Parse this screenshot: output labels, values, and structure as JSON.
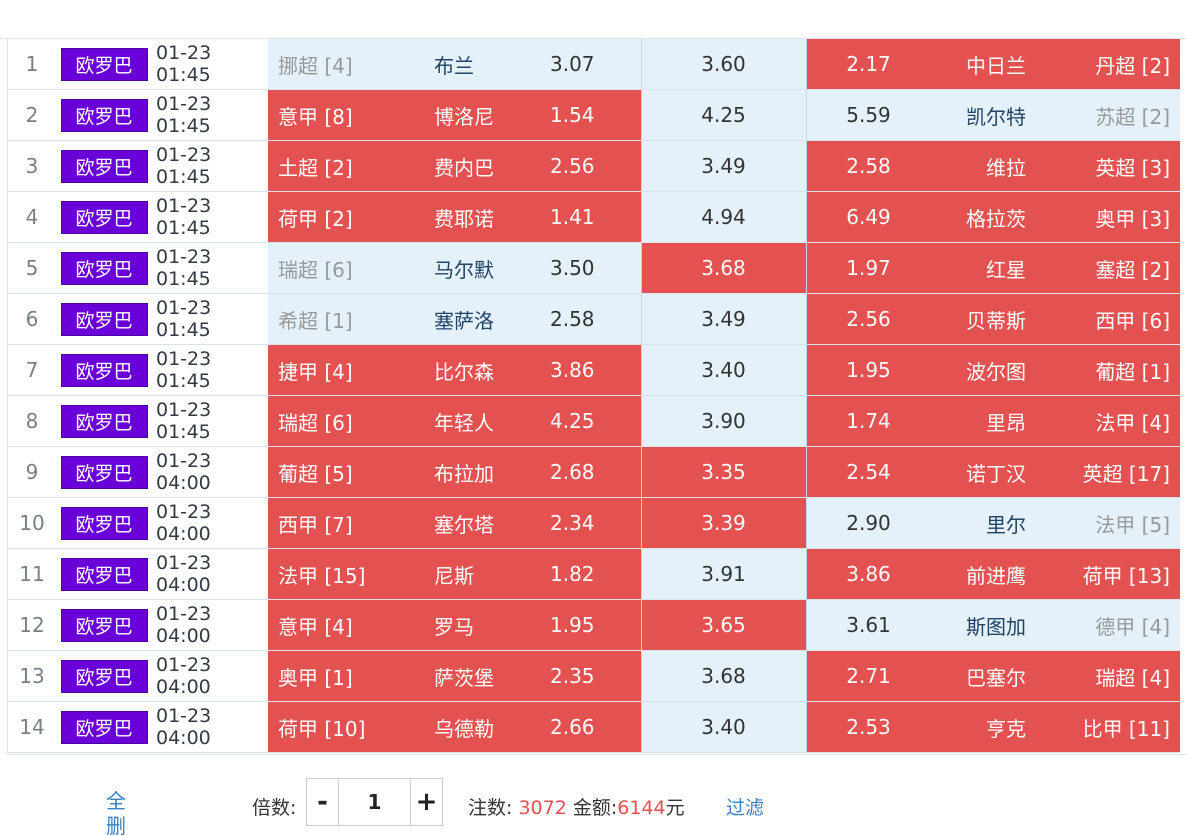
{
  "colors": {
    "accent_red": "#e35151",
    "light_blue": "#e4f0fa",
    "badge_purple": "#6a00d8",
    "link_blue": "#3b7ec3"
  },
  "matches": [
    {
      "num": "1",
      "league_badge": "欧罗巴",
      "time": "01-23 01:45",
      "home_league": "挪超 [4]",
      "home_team": "布兰",
      "home_odds": "3.07",
      "draw_odds": "3.60",
      "away_odds": "2.17",
      "away_team": "中日兰",
      "away_league": "丹超 [2]",
      "home_sel": false,
      "draw_sel": false,
      "away_sel": true
    },
    {
      "num": "2",
      "league_badge": "欧罗巴",
      "time": "01-23 01:45",
      "home_league": "意甲 [8]",
      "home_team": "博洛尼",
      "home_odds": "1.54",
      "draw_odds": "4.25",
      "away_odds": "5.59",
      "away_team": "凯尔特",
      "away_league": "苏超 [2]",
      "home_sel": true,
      "draw_sel": false,
      "away_sel": false
    },
    {
      "num": "3",
      "league_badge": "欧罗巴",
      "time": "01-23 01:45",
      "home_league": "土超 [2]",
      "home_team": "费内巴",
      "home_odds": "2.56",
      "draw_odds": "3.49",
      "away_odds": "2.58",
      "away_team": "维拉",
      "away_league": "英超 [3]",
      "home_sel": true,
      "draw_sel": false,
      "away_sel": true
    },
    {
      "num": "4",
      "league_badge": "欧罗巴",
      "time": "01-23 01:45",
      "home_league": "荷甲 [2]",
      "home_team": "费耶诺",
      "home_odds": "1.41",
      "draw_odds": "4.94",
      "away_odds": "6.49",
      "away_team": "格拉茨",
      "away_league": "奥甲 [3]",
      "home_sel": true,
      "draw_sel": false,
      "away_sel": true
    },
    {
      "num": "5",
      "league_badge": "欧罗巴",
      "time": "01-23 01:45",
      "home_league": "瑞超 [6]",
      "home_team": "马尔默",
      "home_odds": "3.50",
      "draw_odds": "3.68",
      "away_odds": "1.97",
      "away_team": "红星",
      "away_league": "塞超 [2]",
      "home_sel": false,
      "draw_sel": true,
      "away_sel": true
    },
    {
      "num": "6",
      "league_badge": "欧罗巴",
      "time": "01-23 01:45",
      "home_league": "希超 [1]",
      "home_team": "塞萨洛",
      "home_odds": "2.58",
      "draw_odds": "3.49",
      "away_odds": "2.56",
      "away_team": "贝蒂斯",
      "away_league": "西甲 [6]",
      "home_sel": false,
      "draw_sel": false,
      "away_sel": true
    },
    {
      "num": "7",
      "league_badge": "欧罗巴",
      "time": "01-23 01:45",
      "home_league": "捷甲 [4]",
      "home_team": "比尔森",
      "home_odds": "3.86",
      "draw_odds": "3.40",
      "away_odds": "1.95",
      "away_team": "波尔图",
      "away_league": "葡超 [1]",
      "home_sel": true,
      "draw_sel": false,
      "away_sel": true
    },
    {
      "num": "8",
      "league_badge": "欧罗巴",
      "time": "01-23 01:45",
      "home_league": "瑞超 [6]",
      "home_team": "年轻人",
      "home_odds": "4.25",
      "draw_odds": "3.90",
      "away_odds": "1.74",
      "away_team": "里昂",
      "away_league": "法甲 [4]",
      "home_sel": true,
      "draw_sel": false,
      "away_sel": true
    },
    {
      "num": "9",
      "league_badge": "欧罗巴",
      "time": "01-23 04:00",
      "home_league": "葡超 [5]",
      "home_team": "布拉加",
      "home_odds": "2.68",
      "draw_odds": "3.35",
      "away_odds": "2.54",
      "away_team": "诺丁汉",
      "away_league": "英超 [17]",
      "home_sel": true,
      "draw_sel": true,
      "away_sel": true
    },
    {
      "num": "10",
      "league_badge": "欧罗巴",
      "time": "01-23 04:00",
      "home_league": "西甲 [7]",
      "home_team": "塞尔塔",
      "home_odds": "2.34",
      "draw_odds": "3.39",
      "away_odds": "2.90",
      "away_team": "里尔",
      "away_league": "法甲 [5]",
      "home_sel": true,
      "draw_sel": true,
      "away_sel": false
    },
    {
      "num": "11",
      "league_badge": "欧罗巴",
      "time": "01-23 04:00",
      "home_league": "法甲 [15]",
      "home_team": "尼斯",
      "home_odds": "1.82",
      "draw_odds": "3.91",
      "away_odds": "3.86",
      "away_team": "前进鹰",
      "away_league": "荷甲 [13]",
      "home_sel": true,
      "draw_sel": false,
      "away_sel": true
    },
    {
      "num": "12",
      "league_badge": "欧罗巴",
      "time": "01-23 04:00",
      "home_league": "意甲 [4]",
      "home_team": "罗马",
      "home_odds": "1.95",
      "draw_odds": "3.65",
      "away_odds": "3.61",
      "away_team": "斯图加",
      "away_league": "德甲 [4]",
      "home_sel": true,
      "draw_sel": true,
      "away_sel": false
    },
    {
      "num": "13",
      "league_badge": "欧罗巴",
      "time": "01-23 04:00",
      "home_league": "奥甲 [1]",
      "home_team": "萨茨堡",
      "home_odds": "2.35",
      "draw_odds": "3.68",
      "away_odds": "2.71",
      "away_team": "巴塞尔",
      "away_league": "瑞超 [4]",
      "home_sel": true,
      "draw_sel": false,
      "away_sel": true
    },
    {
      "num": "14",
      "league_badge": "欧罗巴",
      "time": "01-23 04:00",
      "home_league": "荷甲 [10]",
      "home_team": "乌德勒",
      "home_odds": "2.66",
      "draw_odds": "3.40",
      "away_odds": "2.53",
      "away_team": "亨克",
      "away_league": "比甲 [11]",
      "home_sel": true,
      "draw_sel": false,
      "away_sel": true
    }
  ],
  "footer": {
    "delete_all_line1": "全",
    "delete_all_line2": "删",
    "multiplier_label": "倍数:",
    "minus": "-",
    "multiplier_value": "1",
    "plus": "+",
    "bets_label": "注数:",
    "bets_value": "3072",
    "amount_label": "金额:",
    "amount_value": "6144",
    "amount_unit": "元",
    "filter_label": "过滤"
  }
}
